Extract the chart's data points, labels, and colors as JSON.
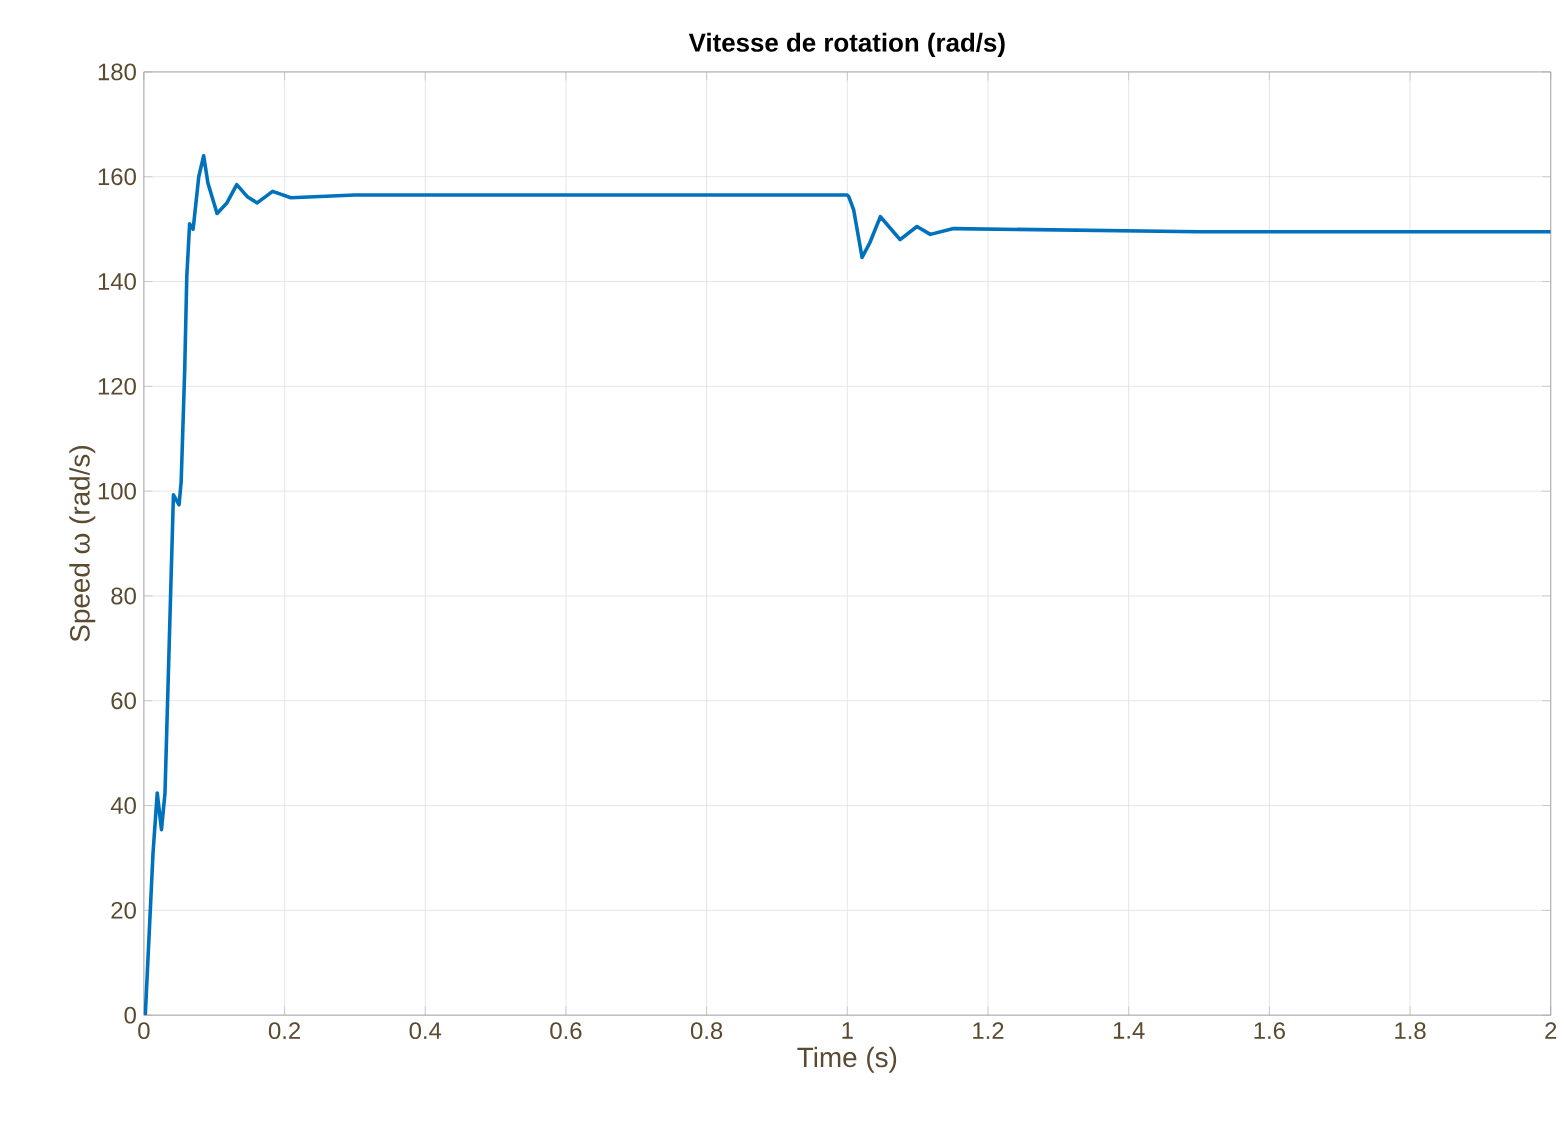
{
  "chart_data": {
    "type": "line",
    "title": "Vitesse de rotation (rad/s)",
    "xlabel": "Time (s)",
    "ylabel": "Speed ω (rad/s)",
    "xlim": [
      0,
      2
    ],
    "ylim": [
      0,
      180
    ],
    "xticks": [
      0,
      0.2,
      0.4,
      0.6,
      0.8,
      1,
      1.2,
      1.4,
      1.6,
      1.8,
      2
    ],
    "yticks": [
      0,
      20,
      40,
      60,
      80,
      100,
      120,
      140,
      160,
      180
    ],
    "grid": true,
    "series": [
      {
        "color": "#0072bd",
        "x": [
          0.002,
          0.013,
          0.019,
          0.025,
          0.03,
          0.042,
          0.05,
          0.053,
          0.058,
          0.061,
          0.065,
          0.07,
          0.078,
          0.085,
          0.091,
          0.104,
          0.118,
          0.132,
          0.147,
          0.161,
          0.183,
          0.209,
          0.3,
          0.5,
          0.7,
          0.9,
          1.0,
          1.002,
          1.009,
          1.021,
          1.032,
          1.047,
          1.059,
          1.075,
          1.099,
          1.118,
          1.151,
          1.5,
          2.0
        ],
        "values": [
          0,
          31,
          42.4,
          35.4,
          42.4,
          99.3,
          97.4,
          101.8,
          123,
          141,
          151,
          150,
          160,
          164,
          158.8,
          153,
          155,
          158.5,
          156.2,
          155,
          157.2,
          156,
          156.5,
          156.5,
          156.5,
          156.5,
          156.5,
          156.2,
          153.7,
          144.6,
          147.4,
          152.4,
          150.5,
          148,
          150.5,
          149,
          150.1,
          149.5,
          149.5
        ]
      }
    ]
  }
}
